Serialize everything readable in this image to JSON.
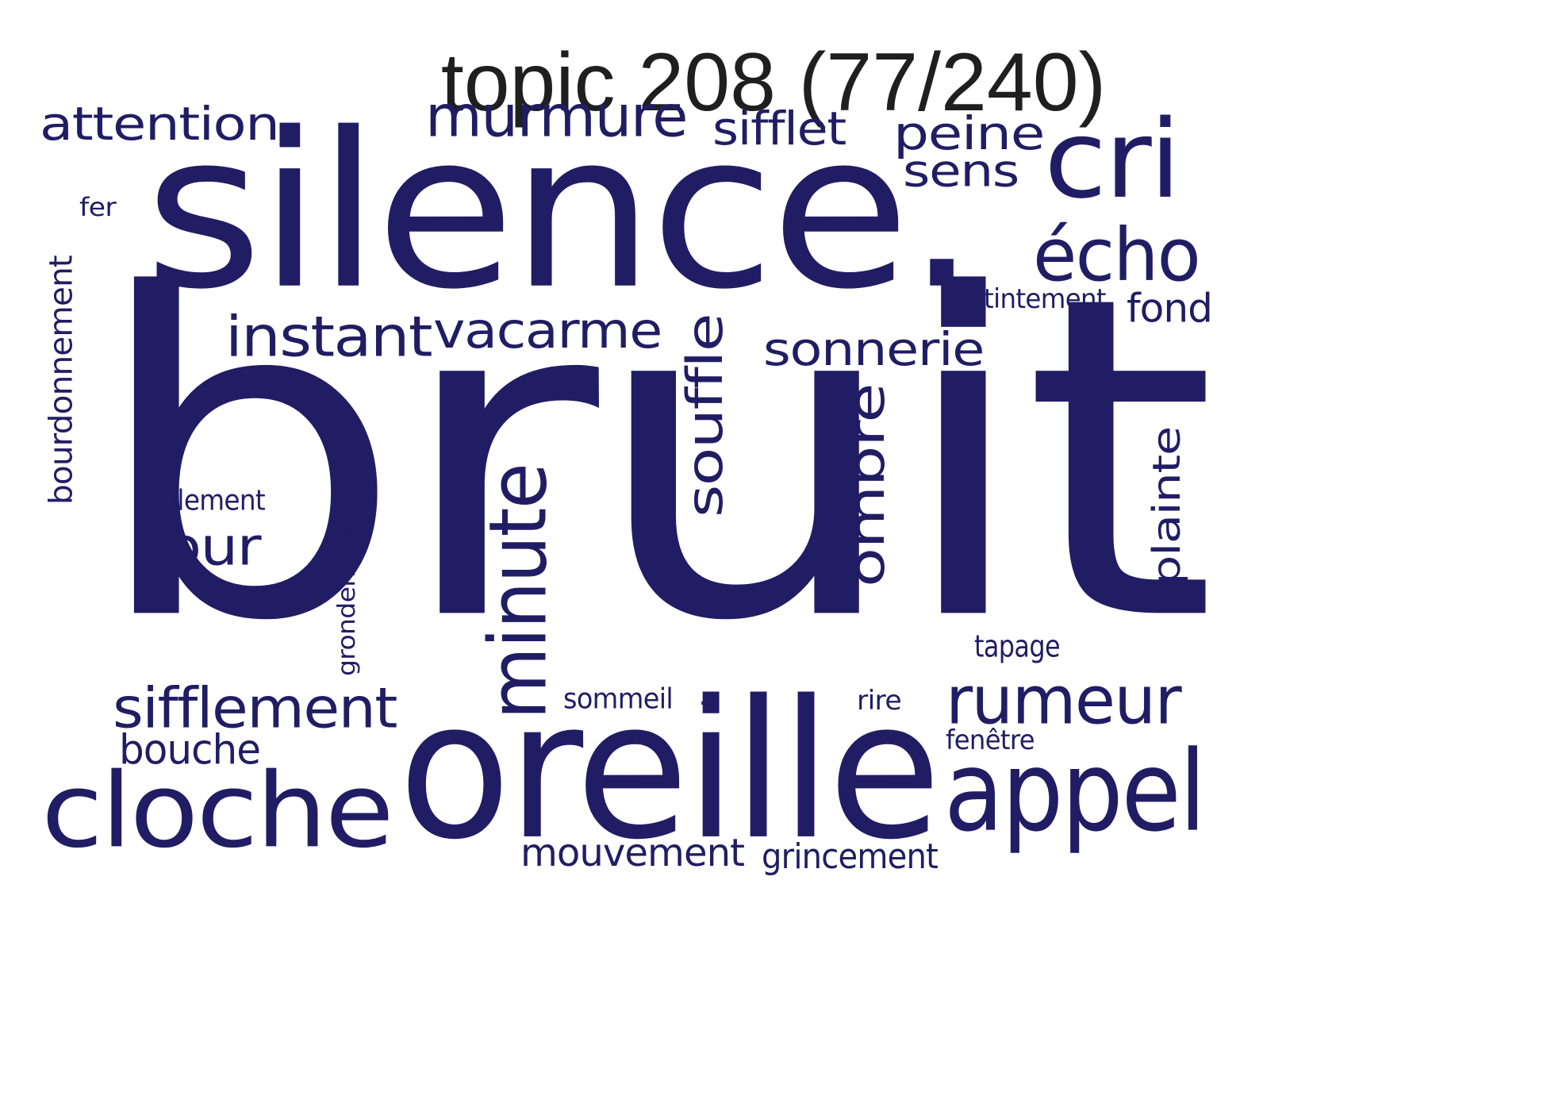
{
  "title": "topic 208 (77/240)",
  "color": "#211d64",
  "words": [
    {
      "text": "bruit"
    },
    {
      "text": "silence."
    },
    {
      "text": "oreille"
    },
    {
      "text": "cloche"
    },
    {
      "text": "cri"
    },
    {
      "text": "appel"
    },
    {
      "text": "minute"
    },
    {
      "text": "écho"
    },
    {
      "text": "rumeur"
    },
    {
      "text": "murmure"
    },
    {
      "text": "instant"
    },
    {
      "text": "vacarme"
    },
    {
      "text": "sifflement"
    },
    {
      "text": "souffle"
    },
    {
      "text": "ombre"
    },
    {
      "text": "sonnerie"
    },
    {
      "text": "plainte"
    },
    {
      "text": "attention."
    },
    {
      "text": "tour"
    },
    {
      "text": "sifflet"
    },
    {
      "text": "peine"
    },
    {
      "text": "sens"
    },
    {
      "text": "bouche"
    },
    {
      "text": "mouvement"
    },
    {
      "text": "grincement"
    },
    {
      "text": "bourdonnement"
    },
    {
      "text": "fond"
    },
    {
      "text": "roulement"
    },
    {
      "text": "tintement"
    },
    {
      "text": "tapage"
    },
    {
      "text": "grondement"
    },
    {
      "text": "sommeil"
    },
    {
      "text": "rire"
    },
    {
      "text": "fenêtre"
    },
    {
      "text": "fer"
    },
    {
      "text": "."
    }
  ]
}
